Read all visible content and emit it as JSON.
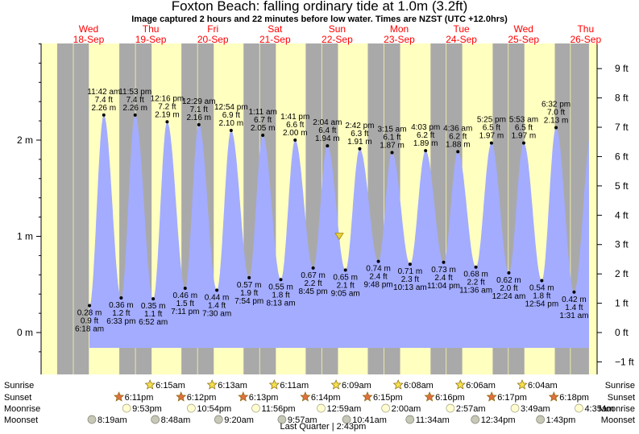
{
  "title": "Foxton Beach: falling  ordinary tide at 1.0m (3.2ft)",
  "subtitle": "Image captured 2 hours and 22 minutes before low water. Times are NZST (UTC +12.0hrs)",
  "colors": {
    "day_bg": "#ffffc0",
    "night_bg": "#a9a9a9",
    "tide_fill": "#a3acff",
    "dateline": "#ff0000",
    "sun_marker": "#f4e04d",
    "sunset_marker": "#e07040",
    "moon_marker": "#fffdd0",
    "moonset_marker": "#c8c8b8",
    "now_marker": "#e8d040"
  },
  "chart_data": {
    "type": "area",
    "title": "Foxton Beach: falling  ordinary tide at 1.0m (3.2ft)",
    "y_left": {
      "label": "m",
      "ticks": [
        "2 m",
        "1 m",
        "0 m"
      ],
      "tick_values": [
        2,
        1,
        0
      ]
    },
    "y_right": {
      "label": "ft",
      "ticks": [
        "9 ft",
        "8 ft",
        "7 ft",
        "6 ft",
        "5 ft",
        "4 ft",
        "3 ft",
        "2 ft",
        "1 ft",
        "0 ft",
        "−1 ft"
      ],
      "tick_values": [
        9,
        8,
        7,
        6,
        5,
        4,
        3,
        2,
        1,
        0,
        -1
      ]
    },
    "ylim_m": [
      -0.35,
      3.1
    ],
    "x_range_days": [
      0,
      8.3
    ],
    "days": [
      {
        "weekday": "Wed",
        "date": "18-Sep"
      },
      {
        "weekday": "Thu",
        "date": "19-Sep"
      },
      {
        "weekday": "Fri",
        "date": "20-Sep"
      },
      {
        "weekday": "Sat",
        "date": "21-Sep"
      },
      {
        "weekday": "Sun",
        "date": "22-Sep"
      },
      {
        "weekday": "Mon",
        "date": "23-Sep"
      },
      {
        "weekday": "Tue",
        "date": "24-Sep"
      },
      {
        "weekday": "Wed",
        "date": "25-Sep"
      },
      {
        "weekday": "Thu",
        "date": "26-Sep"
      }
    ],
    "nights": [
      [
        -0.26,
        0.25
      ],
      [
        0.74,
        1.26
      ],
      [
        1.74,
        2.26
      ],
      [
        2.74,
        3.26
      ],
      [
        3.74,
        4.26
      ],
      [
        4.74,
        5.26
      ],
      [
        5.75,
        6.26
      ],
      [
        6.75,
        7.26
      ],
      [
        7.75,
        8.3
      ]
    ],
    "tides": [
      {
        "t": 0.26,
        "m": 0.28,
        "time": "6:18 am",
        "m_label": "0.28 m",
        "ft": "0.9 ft",
        "type": "low"
      },
      {
        "t": 0.49,
        "m": 2.26,
        "time": "11:42 am",
        "m_label": "2.26 m",
        "ft": "7.4 ft",
        "type": "high"
      },
      {
        "t": 0.77,
        "m": 0.36,
        "time": "6:33 pm",
        "m_label": "0.36 m",
        "ft": "1.2 ft",
        "type": "low"
      },
      {
        "t": 0.995,
        "m": 2.26,
        "time": "11:53 pm",
        "m_label": "2.26 m",
        "ft": "7.4 ft",
        "type": "high"
      },
      {
        "t": 1.286,
        "m": 0.35,
        "time": "6:52 am",
        "m_label": "0.35 m",
        "ft": "1.1 ft",
        "type": "low"
      },
      {
        "t": 1.51,
        "m": 2.19,
        "time": "12:16 pm",
        "m_label": "2.19 m",
        "ft": "7.2 ft",
        "type": "high"
      },
      {
        "t": 1.8,
        "m": 0.46,
        "time": "7:11 pm",
        "m_label": "0.46 m",
        "ft": "1.5 ft",
        "type": "low"
      },
      {
        "t": 2.02,
        "m": 2.16,
        "time": "12:29 am",
        "m_label": "2.16 m",
        "ft": "7.1 ft",
        "type": "high"
      },
      {
        "t": 2.31,
        "m": 0.44,
        "time": "7:30 am",
        "m_label": "0.44 m",
        "ft": "1.4 ft",
        "type": "low"
      },
      {
        "t": 2.54,
        "m": 2.1,
        "time": "12:54 pm",
        "m_label": "2.10 m",
        "ft": "6.9 ft",
        "type": "high"
      },
      {
        "t": 2.83,
        "m": 0.57,
        "time": "7:54 pm",
        "m_label": "0.57 m",
        "ft": "1.9 ft",
        "type": "low"
      },
      {
        "t": 3.05,
        "m": 2.05,
        "time": "1:11 am",
        "m_label": "2.05 m",
        "ft": "6.7 ft",
        "type": "high"
      },
      {
        "t": 3.34,
        "m": 0.55,
        "time": "8:13 am",
        "m_label": "0.55 m",
        "ft": "1.8 ft",
        "type": "low"
      },
      {
        "t": 3.57,
        "m": 2.0,
        "time": "1:41 pm",
        "m_label": "2.00 m",
        "ft": "6.6 ft",
        "type": "high"
      },
      {
        "t": 3.86,
        "m": 0.67,
        "time": "8:45 pm",
        "m_label": "0.67 m",
        "ft": "2.2 ft",
        "type": "low"
      },
      {
        "t": 4.09,
        "m": 1.94,
        "time": "2:04 am",
        "m_label": "1.94 m",
        "ft": "6.4 ft",
        "type": "high"
      },
      {
        "t": 4.38,
        "m": 0.65,
        "time": "9:05 am",
        "m_label": "0.65 m",
        "ft": "2.1 ft",
        "type": "low"
      },
      {
        "t": 4.61,
        "m": 1.91,
        "time": "2:42 pm",
        "m_label": "1.91 m",
        "ft": "6.3 ft",
        "type": "high"
      },
      {
        "t": 4.91,
        "m": 0.74,
        "time": "9:48 pm",
        "m_label": "0.74 m",
        "ft": "2.4 ft",
        "type": "low"
      },
      {
        "t": 5.13,
        "m": 1.87,
        "time": "3:15 am",
        "m_label": "1.87 m",
        "ft": "6.1 ft",
        "type": "high"
      },
      {
        "t": 5.42,
        "m": 0.71,
        "time": "10:13 am",
        "m_label": "0.71 m",
        "ft": "2.3 ft",
        "type": "low"
      },
      {
        "t": 5.67,
        "m": 1.89,
        "time": "4:03 pm",
        "m_label": "1.89 m",
        "ft": "6.2 ft",
        "type": "high"
      },
      {
        "t": 5.96,
        "m": 0.73,
        "time": "11:04 pm",
        "m_label": "0.73 m",
        "ft": "2.4 ft",
        "type": "low"
      },
      {
        "t": 6.19,
        "m": 1.88,
        "time": "4:36 am",
        "m_label": "1.88 m",
        "ft": "6.2 ft",
        "type": "high"
      },
      {
        "t": 6.48,
        "m": 0.68,
        "time": "11:36 am",
        "m_label": "0.68 m",
        "ft": "2.2 ft",
        "type": "low"
      },
      {
        "t": 6.73,
        "m": 1.97,
        "time": "5:25 pm",
        "m_label": "1.97 m",
        "ft": "6.5 ft",
        "type": "high"
      },
      {
        "t": 7.01,
        "m": 0.62,
        "time": "12:24 am",
        "m_label": "0.62 m",
        "ft": "2.0 ft",
        "type": "low"
      },
      {
        "t": 7.25,
        "m": 1.97,
        "time": "5:53 am",
        "m_label": "1.97 m",
        "ft": "6.5 ft",
        "type": "high"
      },
      {
        "t": 7.54,
        "m": 0.54,
        "time": "12:54 pm",
        "m_label": "0.54 m",
        "ft": "1.8 ft",
        "type": "low"
      },
      {
        "t": 7.77,
        "m": 2.13,
        "time": "6:32 pm",
        "m_label": "2.13 m",
        "ft": "7.0 ft",
        "type": "high"
      },
      {
        "t": 8.06,
        "m": 0.42,
        "time": "1:31 am",
        "m_label": "0.42 m",
        "ft": "1.4 ft",
        "type": "low"
      }
    ],
    "now": {
      "t": 4.28,
      "m": 1.0
    }
  },
  "astro": {
    "row_labels": [
      "Sunrise",
      "Sunset",
      "Moonrise",
      "Moonset"
    ],
    "sunrise": [
      {
        "t": 1.26,
        "label": "6:15am"
      },
      {
        "t": 2.26,
        "label": "6:13am"
      },
      {
        "t": 3.26,
        "label": "6:11am"
      },
      {
        "t": 4.255,
        "label": "6:09am"
      },
      {
        "t": 5.255,
        "label": "6:08am"
      },
      {
        "t": 6.255,
        "label": "6:06am"
      },
      {
        "t": 7.25,
        "label": "6:04am"
      }
    ],
    "sunset": [
      {
        "t": 0.76,
        "label": "6:11pm"
      },
      {
        "t": 1.76,
        "label": "6:12pm"
      },
      {
        "t": 2.76,
        "label": "6:13pm"
      },
      {
        "t": 3.76,
        "label": "6:14pm"
      },
      {
        "t": 4.76,
        "label": "6:15pm"
      },
      {
        "t": 5.76,
        "label": "6:16pm"
      },
      {
        "t": 6.76,
        "label": "6:17pm"
      },
      {
        "t": 7.76,
        "label": "6:18pm"
      }
    ],
    "moonrise": [
      {
        "t": 0.91,
        "label": "9:53pm"
      },
      {
        "t": 1.95,
        "label": "10:54pm"
      },
      {
        "t": 2.99,
        "label": "11:56pm"
      },
      {
        "t": 4.04,
        "label": "12:59am"
      },
      {
        "t": 5.08,
        "label": "2:00am"
      },
      {
        "t": 6.12,
        "label": "2:57am"
      },
      {
        "t": 7.16,
        "label": "3:49am"
      },
      {
        "t": 8.19,
        "label": "4:35am"
      }
    ],
    "moonset": [
      {
        "t": 0.35,
        "label": "8:19am"
      },
      {
        "t": 1.37,
        "label": "8:48am"
      },
      {
        "t": 2.39,
        "label": "9:20am"
      },
      {
        "t": 3.41,
        "label": "9:57am"
      },
      {
        "t": 4.45,
        "label": "10:41am"
      },
      {
        "t": 5.47,
        "label": "11:34am"
      },
      {
        "t": 6.52,
        "label": "12:34pm"
      },
      {
        "t": 7.57,
        "label": "1:43pm"
      }
    ],
    "moon_phase": "Last Quarter | 2:43pm"
  }
}
